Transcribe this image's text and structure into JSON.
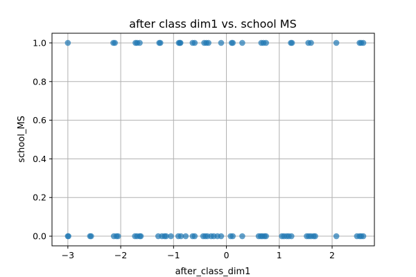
{
  "chart_data": {
    "type": "scatter",
    "title": "after class dim1 vs. school MS",
    "xlabel": "after_class_dim1",
    "ylabel": "school_MS",
    "xlim": [
      -3.3,
      2.8
    ],
    "ylim": [
      -0.05,
      1.05
    ],
    "xticks": [
      -3,
      -2,
      -1,
      0,
      1,
      2
    ],
    "yticks": [
      0.0,
      0.2,
      0.4,
      0.6,
      0.8,
      1.0
    ],
    "xtick_labels": [
      "−3",
      "−2",
      "−1",
      "0",
      "1",
      "2"
    ],
    "ytick_labels": [
      "0.0",
      "0.2",
      "0.4",
      "0.6",
      "0.8",
      "1.0"
    ],
    "grid": true,
    "marker_color": "#1f77b4",
    "marker_alpha": 0.7,
    "series": [
      {
        "y_value": 1.0,
        "x": [
          -3.0,
          -2.14,
          -2.11,
          -1.72,
          -1.69,
          -1.64,
          -1.27,
          -1.25,
          -0.9,
          -0.88,
          -0.87,
          -0.64,
          -0.6,
          -0.42,
          -0.38,
          -0.34,
          -0.1,
          0.1,
          0.12,
          0.3,
          0.66,
          0.7,
          0.75,
          1.22,
          1.24,
          1.55,
          1.6,
          2.08,
          2.52,
          2.55,
          2.59
        ]
      },
      {
        "y_value": 0.0,
        "x": [
          -3.0,
          -2.99,
          -2.58,
          -2.56,
          -2.13,
          -2.08,
          -2.05,
          -1.73,
          -1.69,
          -1.64,
          -1.62,
          -1.29,
          -1.22,
          -1.17,
          -1.14,
          -1.05,
          -0.91,
          -0.86,
          -0.77,
          -0.64,
          -0.6,
          -0.44,
          -0.4,
          -0.36,
          -0.29,
          -0.24,
          -0.17,
          -0.1,
          0.08,
          0.12,
          0.3,
          0.61,
          0.65,
          0.68,
          0.72,
          0.75,
          1.05,
          1.09,
          1.14,
          1.18,
          1.23,
          1.52,
          1.56,
          1.6,
          1.65,
          1.68,
          2.08,
          2.47,
          2.52,
          2.55,
          2.59
        ]
      }
    ]
  }
}
